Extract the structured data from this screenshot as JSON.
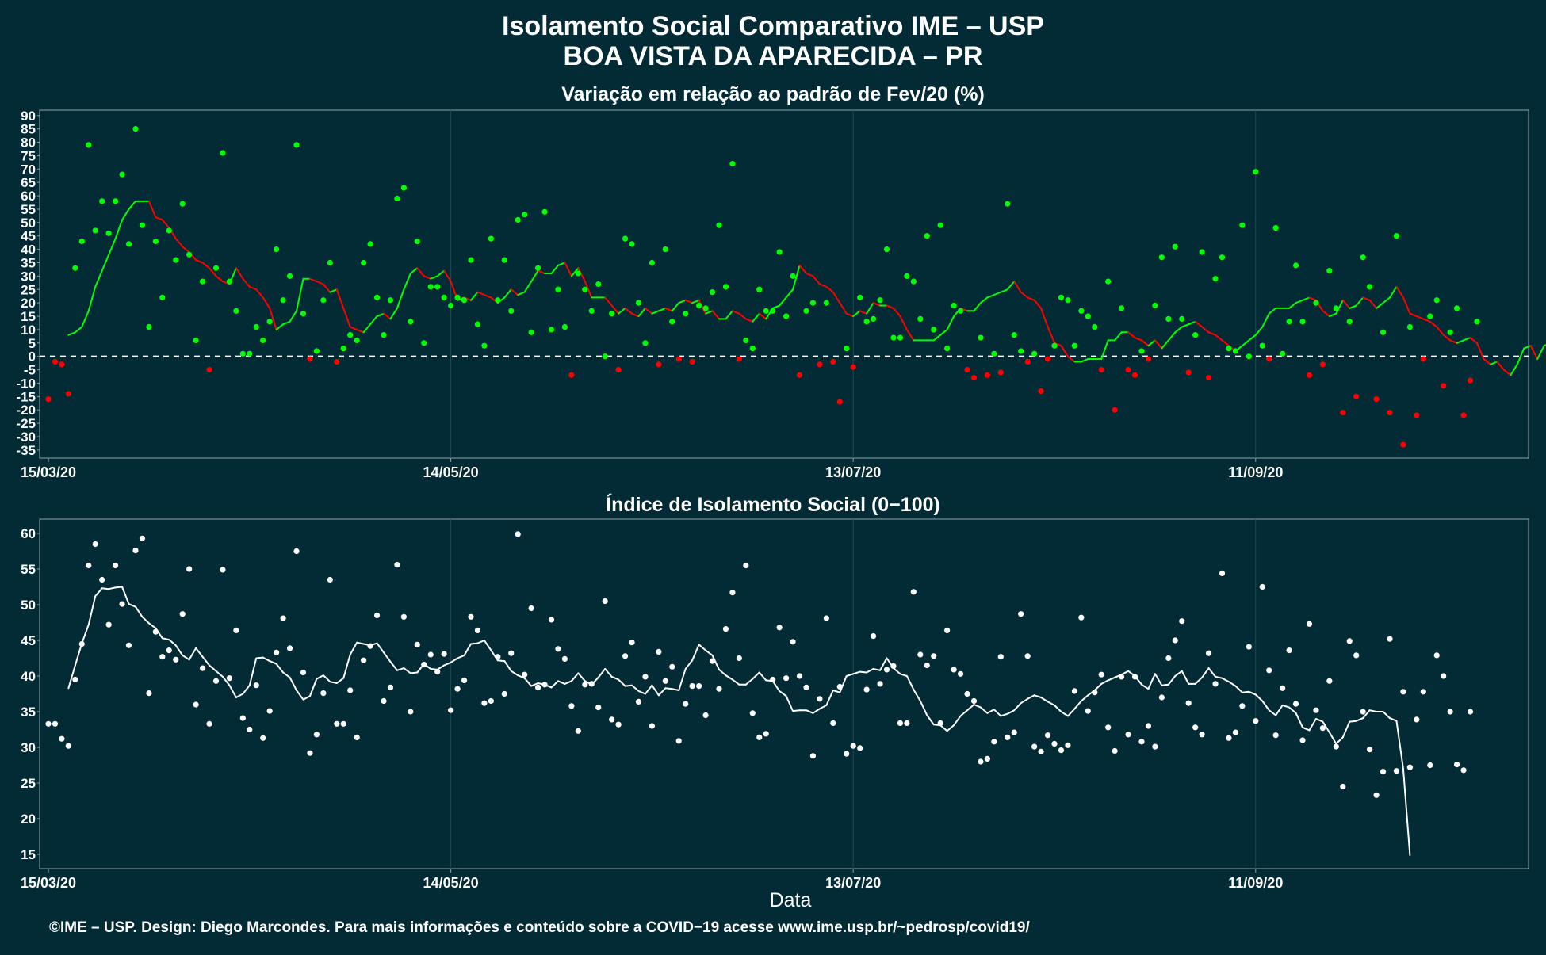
{
  "title": {
    "line1": "Isolamento Social Comparativo IME – USP",
    "line2": "BOA VISTA DA APARECIDA – PR"
  },
  "xlabel": "Data",
  "caption": "©IME – USP. Design: Diego Marcondes. Para mais informações e conteúdo sobre a COVID−19 acesse www.ime.usp.br/~pedrosp/covid19/",
  "colors": {
    "background": "#022b35",
    "grid": "#1f4a55",
    "axis": "#8fa3a8",
    "positive": "#00ff00",
    "negative": "#ff0000",
    "index": "#ffffff",
    "zero_line": "#ffffff"
  },
  "chart_data": [
    {
      "type": "scatter",
      "subtitle": "Variação em relação ao padrão de Fev/20 (%)",
      "x_start": "15/03/20",
      "x_end": "24/10/20",
      "x_tick_labels": [
        "15/03/20",
        "14/05/20",
        "13/07/20",
        "11/09/20"
      ],
      "x_tick_day_offsets": [
        0,
        60,
        120,
        180
      ],
      "ylim": [
        -38,
        92
      ],
      "y_ticks": [
        90,
        85,
        80,
        75,
        70,
        65,
        60,
        55,
        50,
        45,
        40,
        35,
        30,
        25,
        20,
        15,
        10,
        5,
        0,
        -5,
        -10,
        -15,
        -20,
        -25,
        -30,
        -35
      ],
      "reference_line": 0,
      "series": [
        {
          "kind": "points",
          "values": [
            -16,
            -2,
            -3,
            -14,
            33,
            43,
            79,
            47,
            58,
            46,
            58,
            68,
            42,
            85,
            49,
            11,
            43,
            22,
            47,
            36,
            57,
            38,
            6,
            28,
            -5,
            33,
            76,
            28,
            17,
            1,
            1,
            11,
            6,
            13,
            40,
            21,
            30,
            79,
            16,
            -1,
            2,
            21,
            35,
            -2,
            3,
            8,
            6,
            35,
            42,
            22,
            8,
            21,
            59,
            63,
            13,
            43,
            5,
            26,
            26,
            22,
            19,
            22,
            21,
            36,
            12,
            4,
            44,
            21,
            36,
            17,
            51,
            53,
            9,
            33,
            54,
            10,
            25,
            11,
            -7,
            31,
            25,
            17,
            27,
            0,
            16,
            -5,
            44,
            42,
            20,
            5,
            35,
            -3,
            40,
            13,
            -1,
            16,
            -2,
            19,
            18,
            24,
            49,
            26,
            72,
            -1,
            6,
            3,
            25,
            17,
            17,
            39,
            15,
            30,
            -7,
            17,
            20,
            -3,
            20,
            -2,
            -17,
            3,
            -4,
            22,
            13,
            14,
            21,
            40,
            7,
            7,
            30,
            28,
            14,
            45,
            10,
            49,
            3,
            19,
            17,
            -5,
            -8,
            7,
            -7,
            1,
            -6,
            57,
            8,
            2,
            -2,
            1,
            -13,
            -1,
            4,
            22,
            21,
            4,
            17,
            15,
            11,
            -5,
            28,
            -20,
            18,
            -5,
            -7,
            2,
            -1,
            19,
            37,
            14,
            41,
            14,
            -6,
            8,
            39,
            -8,
            29,
            37,
            3,
            2,
            49,
            0,
            69,
            4,
            -1,
            48,
            1,
            13,
            34,
            13,
            -7,
            20,
            -3,
            32,
            18,
            -21,
            13,
            -15,
            37,
            26,
            -16,
            9,
            -21,
            45,
            -33,
            11,
            -22,
            -1,
            15,
            21,
            -11,
            9,
            18,
            -22,
            -9,
            13
          ]
        },
        {
          "kind": "moving_average",
          "start_day": 3,
          "values": [
            8,
            9,
            11,
            17,
            26,
            32,
            38,
            44,
            51,
            55,
            58,
            58,
            58,
            52,
            51,
            48,
            44,
            41,
            39,
            36,
            35,
            33,
            30,
            28,
            27,
            33,
            29,
            26,
            25,
            22,
            18,
            10,
            12,
            13,
            17,
            29,
            29,
            28,
            27,
            24,
            25,
            18,
            11,
            10,
            9,
            12,
            15,
            16,
            14,
            18,
            25,
            31,
            33,
            30,
            29,
            30,
            32,
            28,
            21,
            22,
            21,
            24,
            23,
            22,
            20,
            22,
            25,
            23,
            24,
            28,
            32,
            31,
            31,
            34,
            35,
            30,
            33,
            28,
            22,
            22,
            22,
            19,
            16,
            18,
            16,
            15,
            18,
            16,
            17,
            18,
            17,
            20,
            21,
            20,
            21,
            16,
            17,
            14,
            14,
            17,
            16,
            14,
            13,
            16,
            14,
            18,
            19,
            22,
            25,
            34,
            31,
            30,
            27,
            26,
            24,
            20,
            16,
            15,
            17,
            16,
            20,
            19,
            19,
            18,
            15,
            10,
            6,
            6,
            6,
            6,
            8,
            10,
            15,
            18,
            17,
            17,
            20,
            22,
            23,
            24,
            25,
            28,
            24,
            22,
            21,
            18,
            11,
            5,
            4,
            0,
            -2,
            -2,
            -1,
            -1,
            -1,
            6,
            6,
            9,
            9,
            7,
            6,
            4,
            6,
            3,
            6,
            9,
            11,
            12,
            13,
            11,
            9,
            8,
            6,
            4,
            2,
            4,
            6,
            8,
            11,
            16,
            18,
            18,
            18,
            20,
            21,
            22,
            21,
            17,
            15,
            16,
            21,
            18,
            19,
            22,
            21,
            18,
            20,
            22,
            26,
            22,
            16,
            15,
            14,
            13,
            11,
            8,
            6,
            5,
            6,
            7,
            5,
            -1,
            -3,
            -2,
            -5,
            -7,
            -3,
            3,
            4,
            -1,
            4,
            5,
            5,
            2,
            0,
            1
          ]
        }
      ]
    },
    {
      "type": "scatter",
      "subtitle": "Índice de Isolamento Social (0−100)",
      "x_start": "15/03/20",
      "x_end": "24/10/20",
      "x_tick_labels": [
        "15/03/20",
        "14/05/20",
        "13/07/20",
        "11/09/20"
      ],
      "x_tick_day_offsets": [
        0,
        60,
        120,
        180
      ],
      "ylim": [
        13,
        62
      ],
      "y_ticks": [
        60,
        55,
        50,
        45,
        40,
        35,
        30,
        25,
        20,
        15
      ],
      "series": [
        {
          "kind": "points",
          "values": [
            33.3,
            33.3,
            31.2,
            30.2,
            39.5,
            44.5,
            55.5,
            58.5,
            53.5,
            47.2,
            55.5,
            50.1,
            44.3,
            57.6,
            59.3,
            37.6,
            46.2,
            42.7,
            43.6,
            42.3,
            48.7,
            55.0,
            36.0,
            41.1,
            33.3,
            39.3,
            54.9,
            39.7,
            46.4,
            34.1,
            32.5,
            38.7,
            31.3,
            35.1,
            43.3,
            48.1,
            43.9,
            57.5,
            40.5,
            29.2,
            31.8,
            37.6,
            53.5,
            33.3,
            33.3,
            38.0,
            31.4,
            42.2,
            44.2,
            48.5,
            36.5,
            38.4,
            55.6,
            48.3,
            35.0,
            44.4,
            41.6,
            43.0,
            40.6,
            43.1,
            35.2,
            38.2,
            39.4,
            48.3,
            46.4,
            36.2,
            36.5,
            42.7,
            37.5,
            43.2,
            59.9,
            40.2,
            49.5,
            38.4,
            38.8,
            47.9,
            43.8,
            42.4,
            35.8,
            32.3,
            38.8,
            38.9,
            35.6,
            50.5,
            33.9,
            33.2,
            42.8,
            44.7,
            36.4,
            39.9,
            33.0,
            43.4,
            39.3,
            41.3,
            30.9,
            36.1,
            38.6,
            38.6,
            34.5,
            42.1,
            38.2,
            46.6,
            51.7,
            42.5,
            55.5,
            34.8,
            31.4,
            31.9,
            39.5,
            46.8,
            39.7,
            44.8,
            40.0,
            38.4,
            28.8,
            36.8,
            48.1,
            33.4,
            38.5,
            29.1,
            30.2,
            29.9,
            38.1,
            45.6,
            38.9,
            40.9,
            41.4,
            33.4,
            33.4,
            51.8,
            43.0,
            41.5,
            42.8,
            33.4,
            46.4,
            40.9,
            40.3,
            37.5,
            36.5,
            28.0,
            28.4,
            30.8,
            42.7,
            31.4,
            32.1,
            48.7,
            42.8,
            30.1,
            29.4,
            31.7,
            30.5,
            29.6,
            30.3,
            37.9,
            48.2,
            35.1,
            37.7,
            40.2,
            32.8,
            29.5,
            39.9,
            31.8,
            39.9,
            30.8,
            33.0,
            30.1,
            37.0,
            42.5,
            45.0,
            47.7,
            36.2,
            32.8,
            31.8,
            43.2,
            38.9,
            54.4,
            31.3,
            32.1,
            35.8,
            44.1,
            33.7,
            52.5,
            40.8,
            31.7,
            38.3,
            43.6,
            36.1,
            31.0,
            47.3,
            35.2,
            32.7,
            39.3,
            30.1,
            24.5,
            44.9,
            42.9,
            35.0,
            29.7,
            23.3,
            26.6,
            45.2,
            26.7,
            37.8,
            27.2,
            33.9,
            37.8,
            27.5,
            42.9,
            40.0,
            35.0,
            27.6,
            26.8,
            35.0
          ]
        },
        {
          "kind": "moving_average",
          "start_day": 3,
          "values": [
            38.3,
            41.5,
            44.6,
            47.2,
            51.2,
            52.3,
            52.2,
            52.4,
            52.5,
            50.1,
            49.7,
            48.3,
            47.4,
            46.7,
            45.3,
            45.1,
            44.3,
            42.9,
            42.3,
            43.9,
            42.7,
            41.5,
            40.7,
            39.9,
            38.7,
            37.0,
            37.5,
            38.7,
            42.5,
            42.6,
            42.1,
            41.7,
            40.5,
            39.8,
            38.0,
            36.7,
            37.2,
            39.6,
            40.1,
            39.2,
            39.0,
            39.7,
            43.0,
            44.7,
            44.5,
            44.3,
            44.6,
            43.3,
            42.0,
            40.8,
            41.1,
            40.4,
            40.5,
            41.7,
            41.0,
            40.9,
            41.5,
            41.9,
            42.5,
            42.9,
            44.5,
            44.6,
            45.0,
            43.6,
            42.2,
            42.1,
            40.7,
            40.1,
            39.7,
            38.6,
            39.0,
            38.8,
            38.4,
            39.3,
            38.9,
            39.3,
            40.4,
            39.3,
            38.8,
            39.8,
            41.0,
            39.9,
            39.5,
            38.6,
            38.7,
            37.9,
            37.5,
            38.7,
            37.3,
            38.3,
            38.2,
            38.0,
            41.0,
            42.2,
            44.4,
            43.6,
            42.9,
            40.9,
            40.1,
            39.5,
            38.8,
            38.8,
            39.6,
            40.5,
            39.4,
            39.3,
            37.9,
            37.2,
            35.1,
            35.2,
            35.2,
            34.8,
            35.4,
            35.9,
            38.0,
            37.7,
            40.0,
            40.3,
            40.6,
            40.5,
            41.0,
            40.8,
            42.5,
            41.1,
            40.3,
            40.0,
            38.1,
            36.5,
            34.5,
            33.2,
            33.1,
            32.3,
            33.1,
            34.4,
            35.2,
            36.0,
            35.6,
            34.8,
            35.3,
            34.4,
            34.7,
            35.2,
            36.2,
            36.8,
            37.3,
            37.0,
            36.4,
            35.9,
            35.0,
            34.4,
            35.4,
            36.5,
            37.3,
            38.0,
            38.9,
            39.4,
            39.8,
            40.2,
            40.7,
            40.0,
            38.8,
            38.2,
            40.3,
            38.7,
            38.8,
            40.0,
            40.7,
            38.9,
            38.9,
            39.8,
            41.1,
            39.9,
            39.7,
            39.2,
            38.6,
            37.7,
            37.8,
            37.4,
            36.5,
            35.2,
            34.5,
            35.9,
            35.6,
            34.8,
            32.8,
            32.4,
            34.0,
            33.6,
            32.1,
            30.5,
            31.4,
            33.6,
            33.7,
            34.1,
            35.2,
            35.0,
            35.0,
            34.1,
            33.7,
            27.0,
            14.9
          ]
        }
      ]
    }
  ]
}
